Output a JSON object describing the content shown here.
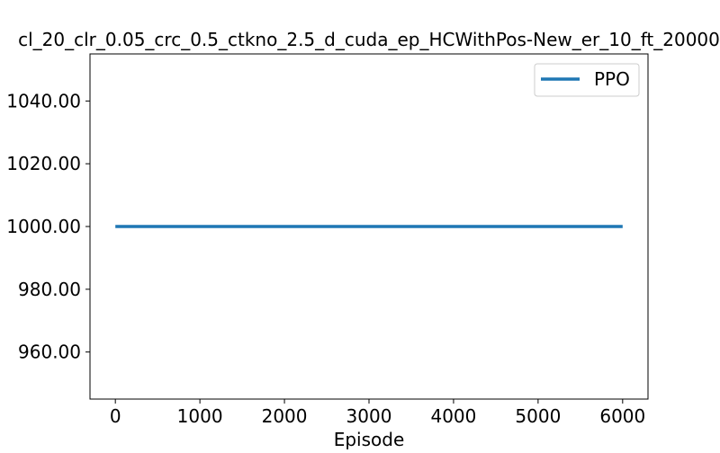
{
  "chart_data": {
    "type": "line",
    "title": "cl_20_clr_0.05_crc_0.5_ctkno_2.5_d_cuda_ep_HCWithPos-New_er_10_ft_20000",
    "xlabel": "Episode",
    "ylabel": "",
    "xlim": [
      -300,
      6300
    ],
    "ylim": [
      945,
      1055
    ],
    "x_ticks": [
      0,
      1000,
      2000,
      3000,
      4000,
      5000,
      6000
    ],
    "x_tick_labels": [
      "0",
      "1000",
      "2000",
      "3000",
      "4000",
      "5000",
      "6000"
    ],
    "y_ticks": [
      960,
      980,
      1000,
      1020,
      1040
    ],
    "y_tick_labels": [
      "960.00",
      "980.00",
      "1000.00",
      "1020.00",
      "1040.00"
    ],
    "grid": false,
    "legend_position": "top-right",
    "series": [
      {
        "name": "PPO",
        "color": "#1f77b4",
        "x": [
          0,
          6000
        ],
        "y": [
          1000,
          1000
        ]
      }
    ]
  }
}
